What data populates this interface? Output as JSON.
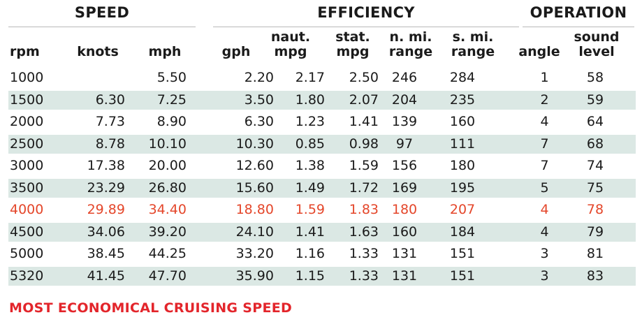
{
  "chart_data": {
    "type": "table",
    "groups": [
      "SPEED",
      "EFFICIENCY",
      "OPERATION"
    ],
    "columns": [
      [
        "rpm"
      ],
      [
        "knots"
      ],
      [
        "mph"
      ],
      [
        "gph"
      ],
      [
        "naut.",
        "mpg"
      ],
      [
        "stat.",
        "mpg"
      ],
      [
        "n. mi.",
        "range"
      ],
      [
        "s. mi.",
        "range"
      ],
      [
        "angle"
      ],
      [
        "sound",
        "level"
      ]
    ],
    "rows": [
      [
        "1000",
        "",
        "5.50",
        "2.20",
        "2.17",
        "2.50",
        "246",
        "284",
        "1",
        "58"
      ],
      [
        "1500",
        "6.30",
        "7.25",
        "3.50",
        "1.80",
        "2.07",
        "204",
        "235",
        "2",
        "59"
      ],
      [
        "2000",
        "7.73",
        "8.90",
        "6.30",
        "1.23",
        "1.41",
        "139",
        "160",
        "4",
        "64"
      ],
      [
        "2500",
        "8.78",
        "10.10",
        "10.30",
        "0.85",
        "0.98",
        "97",
        "111",
        "7",
        "68"
      ],
      [
        "3000",
        "17.38",
        "20.00",
        "12.60",
        "1.38",
        "1.59",
        "156",
        "180",
        "7",
        "74"
      ],
      [
        "3500",
        "23.29",
        "26.80",
        "15.60",
        "1.49",
        "1.72",
        "169",
        "195",
        "5",
        "75"
      ],
      [
        "4000",
        "29.89",
        "34.40",
        "18.80",
        "1.59",
        "1.83",
        "180",
        "207",
        "4",
        "78"
      ],
      [
        "4500",
        "34.06",
        "39.20",
        "24.10",
        "1.41",
        "1.63",
        "160",
        "184",
        "4",
        "79"
      ],
      [
        "5000",
        "38.45",
        "44.25",
        "33.20",
        "1.16",
        "1.33",
        "131",
        "151",
        "3",
        "81"
      ],
      [
        "5320",
        "41.45",
        "47.70",
        "35.90",
        "1.15",
        "1.33",
        "131",
        "151",
        "3",
        "83"
      ]
    ],
    "highlight_row": 6,
    "footnote": "MOST ECONOMICAL CRUISING SPEED"
  },
  "colors": {
    "text": "#1a1a1a",
    "shade": "#dbe8e4",
    "highlight": "#e4462a",
    "footnote": "#e3252b",
    "rule": "#b9b9b9"
  }
}
